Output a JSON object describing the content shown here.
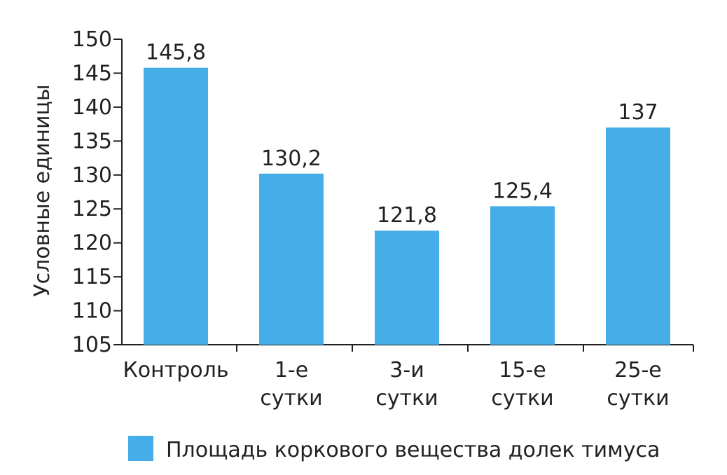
{
  "chart_data": {
    "type": "bar",
    "title": "",
    "xlabel": "",
    "ylabel": "Условные единицы",
    "ylim": [
      105,
      150
    ],
    "yticks": [
      105,
      110,
      115,
      120,
      125,
      130,
      135,
      140,
      145,
      150
    ],
    "grid": false,
    "legend_position": "bottom",
    "categories": [
      [
        "Контроль"
      ],
      [
        "1-е",
        "сутки"
      ],
      [
        "3-и",
        "сутки"
      ],
      [
        "15-е",
        "сутки"
      ],
      [
        "25-е",
        "сутки"
      ]
    ],
    "series": [
      {
        "name": "Площадь коркового вещества долек тимуса",
        "color": "#45aee8",
        "values": [
          145.8,
          130.2,
          121.8,
          125.4,
          137
        ],
        "labels": [
          "145,8",
          "130,2",
          "121,8",
          "125,4",
          "137"
        ]
      }
    ]
  }
}
